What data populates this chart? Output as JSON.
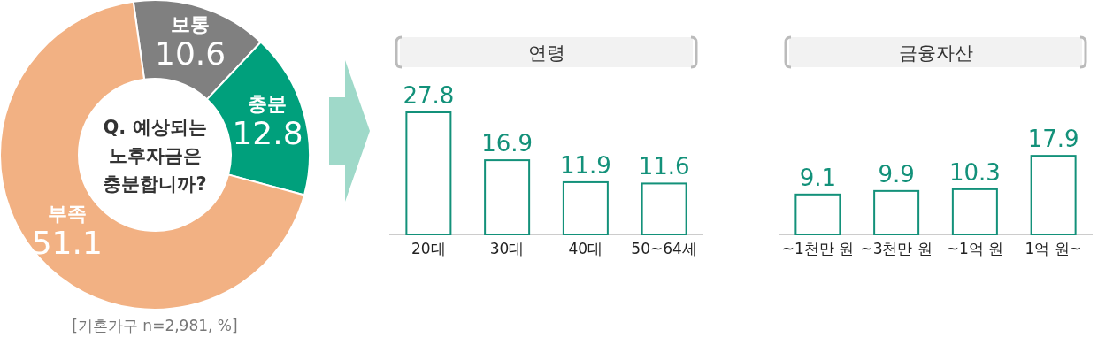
{
  "chart_data": [
    {
      "type": "donut",
      "categories": [
        "보통",
        "충분",
        "부족"
      ],
      "values": [
        10.6,
        12.8,
        51.1
      ],
      "colors": [
        "#808080",
        "#00a07c",
        "#f2b183"
      ],
      "data_labels": true,
      "annotations": [
        "Q. 예상되는\n노후자금은\n충분합니까?",
        "[기혼가구 n=2,981, %]"
      ]
    },
    {
      "type": "bar",
      "title": "연령",
      "categories": [
        "20대",
        "30대",
        "40대",
        "50~64세"
      ],
      "values": [
        27.8,
        16.9,
        11.9,
        11.6
      ],
      "color": "#13917a",
      "data_labels": true
    },
    {
      "type": "bar",
      "title": "금융자산",
      "categories": [
        "~1천만 원",
        "~3천만 원",
        "~1억 원",
        "1억 원~"
      ],
      "values": [
        9.1,
        9.9,
        10.3,
        17.9
      ],
      "color": "#13917a",
      "data_labels": true
    }
  ]
}
